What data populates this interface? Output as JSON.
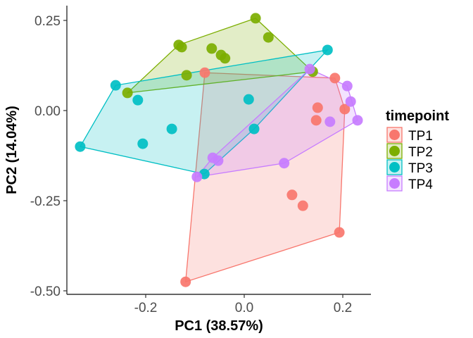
{
  "chart_data": {
    "type": "scatter",
    "title": "",
    "xlabel": "PC1 (38.57%)",
    "ylabel": "PC2 (14.04%)",
    "xlim": [
      -0.355,
      0.255
    ],
    "ylim": [
      -0.51,
      0.29
    ],
    "xticks": [
      -0.2,
      0.0,
      0.2
    ],
    "xtick_labels": [
      "-0.2",
      "0.0",
      "0.2"
    ],
    "yticks": [
      0.25,
      0.0,
      -0.25,
      -0.5
    ],
    "ytick_labels": [
      "0.25",
      "0.00",
      "-0.25",
      "-0.50"
    ],
    "grid": false,
    "hulls": true,
    "legend": {
      "title": "timepoint",
      "placement": "right"
    },
    "series": [
      {
        "name": "TP1",
        "color": "#F8766D",
        "points": [
          [
            -0.08,
            0.105
          ],
          [
            0.184,
            0.09
          ],
          [
            0.149,
            0.008
          ],
          [
            0.204,
            0.004
          ],
          [
            0.146,
            -0.027
          ],
          [
            0.097,
            -0.234
          ],
          [
            0.119,
            -0.264
          ],
          [
            0.193,
            -0.338
          ],
          [
            -0.119,
            -0.475
          ]
        ]
      },
      {
        "name": "TP2",
        "color": "#7CAE00",
        "points": [
          [
            -0.237,
            0.049
          ],
          [
            -0.133,
            0.182
          ],
          [
            -0.127,
            0.176
          ],
          [
            -0.117,
            0.098
          ],
          [
            -0.066,
            0.172
          ],
          [
            -0.047,
            0.154
          ],
          [
            -0.039,
            0.145
          ],
          [
            0.023,
            0.256
          ],
          [
            0.049,
            0.203
          ],
          [
            0.139,
            0.108
          ]
        ]
      },
      {
        "name": "TP3",
        "color": "#00BFC4",
        "points": [
          [
            -0.261,
            0.07
          ],
          [
            -0.333,
            -0.1
          ],
          [
            -0.216,
            0.029
          ],
          [
            -0.147,
            -0.051
          ],
          [
            -0.206,
            -0.092
          ],
          [
            -0.081,
            -0.176
          ],
          [
            0.009,
            0.031
          ],
          [
            0.02,
            -0.051
          ],
          [
            0.169,
            0.168
          ]
        ]
      },
      {
        "name": "TP4",
        "color": "#C77CFF",
        "points": [
          [
            0.133,
            0.115
          ],
          [
            0.209,
            0.068
          ],
          [
            0.216,
            0.025
          ],
          [
            0.23,
            -0.027
          ],
          [
            0.174,
            -0.031
          ],
          [
            0.081,
            -0.146
          ],
          [
            -0.064,
            -0.131
          ],
          [
            -0.053,
            -0.139
          ],
          [
            -0.096,
            -0.184
          ]
        ]
      }
    ]
  }
}
